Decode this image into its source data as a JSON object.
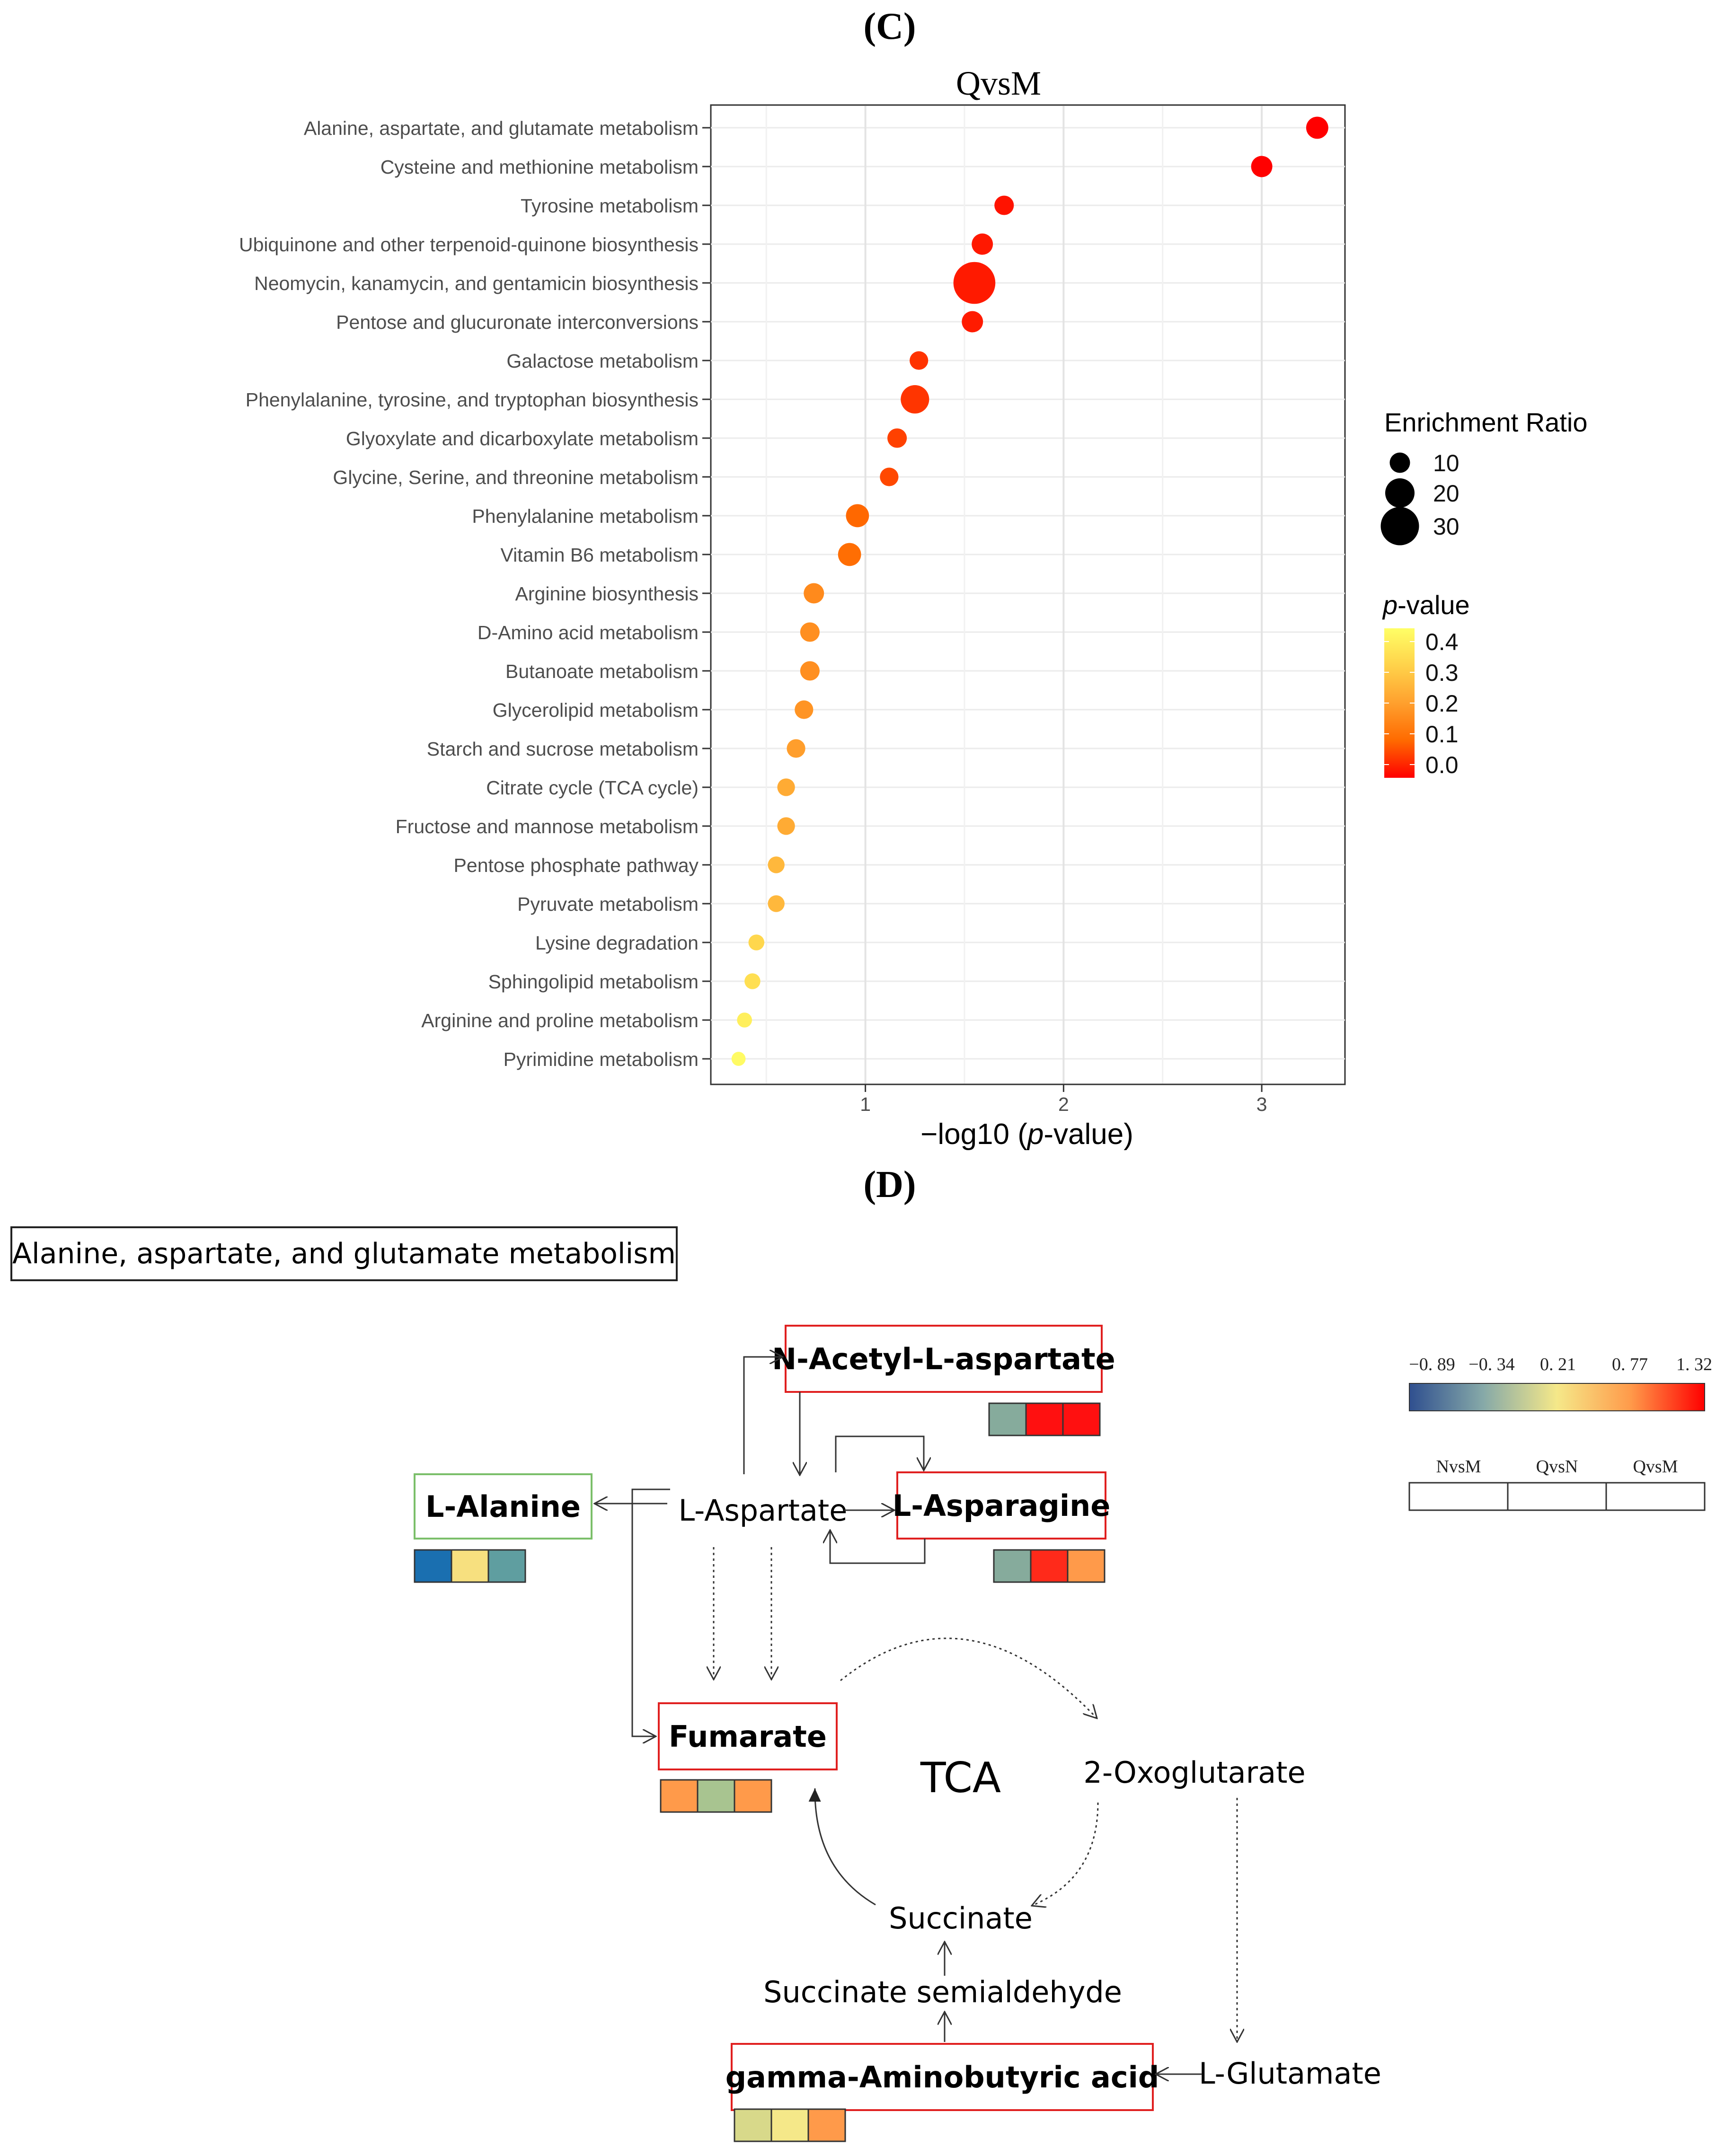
{
  "panel_c": {
    "label": "(C)",
    "chart_data": {
      "type": "scatter",
      "title": "QvsM",
      "xlabel_parts": [
        "−log10 (",
        "p",
        "-value)"
      ],
      "ylabel": "",
      "xlim": [
        0.22,
        3.42
      ],
      "xticks": [
        1,
        2,
        3
      ],
      "grid": true,
      "categories": [
        "Alanine, aspartate, and glutamate metabolism",
        "Cysteine and methionine metabolism",
        "Tyrosine metabolism",
        "Ubiquinone and other terpenoid-quinone biosynthesis",
        "Neomycin, kanamycin, and gentamicin biosynthesis",
        "Pentose and glucuronate interconversions",
        "Galactose metabolism",
        "Phenylalanine, tyrosine, and tryptophan biosynthesis",
        "Glyoxylate and dicarboxylate metabolism",
        "Glycine, Serine, and threonine metabolism",
        "Phenylalanine metabolism",
        "Vitamin B6 metabolism",
        "Arginine biosynthesis",
        "D-Amino acid metabolism",
        "Butanoate metabolism",
        "Glycerolipid metabolism",
        "Starch and sucrose metabolism",
        "Citrate cycle (TCA cycle)",
        "Fructose and mannose metabolism",
        "Pentose phosphate pathway",
        "Pyruvate metabolism",
        "Lysine degradation",
        "Sphingolipid metabolism",
        "Arginine and proline metabolism",
        "Pyrimidine metabolism"
      ],
      "x": [
        3.28,
        3.0,
        1.7,
        1.59,
        1.55,
        1.54,
        1.27,
        1.25,
        1.16,
        1.12,
        0.96,
        0.92,
        0.74,
        0.72,
        0.72,
        0.69,
        0.65,
        0.6,
        0.6,
        0.55,
        0.55,
        0.45,
        0.43,
        0.39,
        0.36
      ],
      "enrichment_ratio": [
        12,
        11,
        9,
        11,
        34,
        11,
        8,
        19,
        9,
        8,
        13,
        13,
        10,
        9,
        9,
        8,
        8,
        7,
        7,
        6,
        6,
        5,
        5,
        4,
        3
      ],
      "p_value": [
        0.0005,
        0.001,
        0.02,
        0.026,
        0.028,
        0.029,
        0.054,
        0.056,
        0.069,
        0.076,
        0.11,
        0.12,
        0.18,
        0.19,
        0.19,
        0.2,
        0.22,
        0.25,
        0.25,
        0.28,
        0.28,
        0.35,
        0.37,
        0.41,
        0.44
      ],
      "size_legend": {
        "title": "Enrichment Ratio",
        "values": [
          10,
          20,
          30
        ]
      },
      "color_legend": {
        "title_parts": [
          "p",
          "-value"
        ],
        "ticks": [
          "0.4",
          "0.3",
          "0.2",
          "0.1",
          "0.0"
        ],
        "tick_values": [
          0.4,
          0.3,
          0.2,
          0.1,
          0.0
        ],
        "range": [
          0.0,
          0.45
        ],
        "colors": [
          "#ff0000",
          "#ff6a00",
          "#ffa02e",
          "#ffd24a",
          "#ffff66"
        ]
      }
    }
  },
  "panel_d": {
    "label": "(D)",
    "title": "Alanine, aspartate, and glutamate metabolism",
    "colorbar_ticks": [
      "−0. 89",
      "−0. 34",
      "0. 21",
      "0. 77",
      "1. 32"
    ],
    "colorbar_values": [
      -0.89,
      -0.34,
      0.21,
      0.77,
      1.32
    ],
    "colorbar_colors": [
      "#2f4f8f",
      "#86a9a8",
      "#f5e889",
      "#ff9a4a",
      "#ff0000"
    ],
    "comparisons": [
      "NvsM",
      "QvsN",
      "QvsM"
    ],
    "tca_label": "TCA",
    "nodes": {
      "n_acetyl": "N-Acetyl-L-aspartate",
      "l_alanine": "L-Alanine",
      "l_aspartate": "L-Aspartate",
      "l_asparagine": "L-Asparagine",
      "fumarate": "Fumarate",
      "oxoglutarate": "2-Oxoglutarate",
      "succinate": "Succinate",
      "semialdehyde": "Succinate semialdehyde",
      "gaba": "gamma-Aminobutyric acid",
      "l_glutamate": "L-Glutamate"
    },
    "heat": {
      "n_acetyl": [
        "#86ab9c",
        "#ff1010",
        "#ff1010"
      ],
      "l_alanine": [
        "#1a6fb0",
        "#f7e07f",
        "#5f9ea0"
      ],
      "l_asparagine": [
        "#86ab9c",
        "#ff2a1a",
        "#ff9a4a"
      ],
      "fumarate": [
        "#ff9a4a",
        "#a8c490",
        "#ff9a4a"
      ],
      "gaba": [
        "#d8d98a",
        "#f5e889",
        "#ff9a4a"
      ]
    }
  }
}
